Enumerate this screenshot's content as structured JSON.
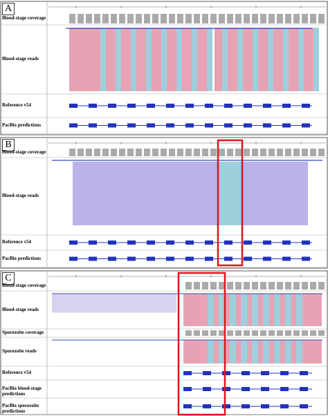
{
  "panels": [
    {
      "label": "A",
      "tracks": [
        "Blood-stage coverage",
        "Blood-stage reads",
        "Reference v54",
        "PacBio predictions"
      ]
    },
    {
      "label": "B",
      "tracks": [
        "Blood-stage coverage",
        "Blood-stage reads",
        "Reference v54",
        "PacBio predictions"
      ]
    },
    {
      "label": "C",
      "tracks": [
        "Blood-stage coverage",
        "Blood-stage reads",
        "Sporozoite coverage",
        "Sporozoite reads",
        "Reference v54",
        "PacBio blood-stage predictions",
        "PacBio sporozoite predictions"
      ]
    }
  ]
}
